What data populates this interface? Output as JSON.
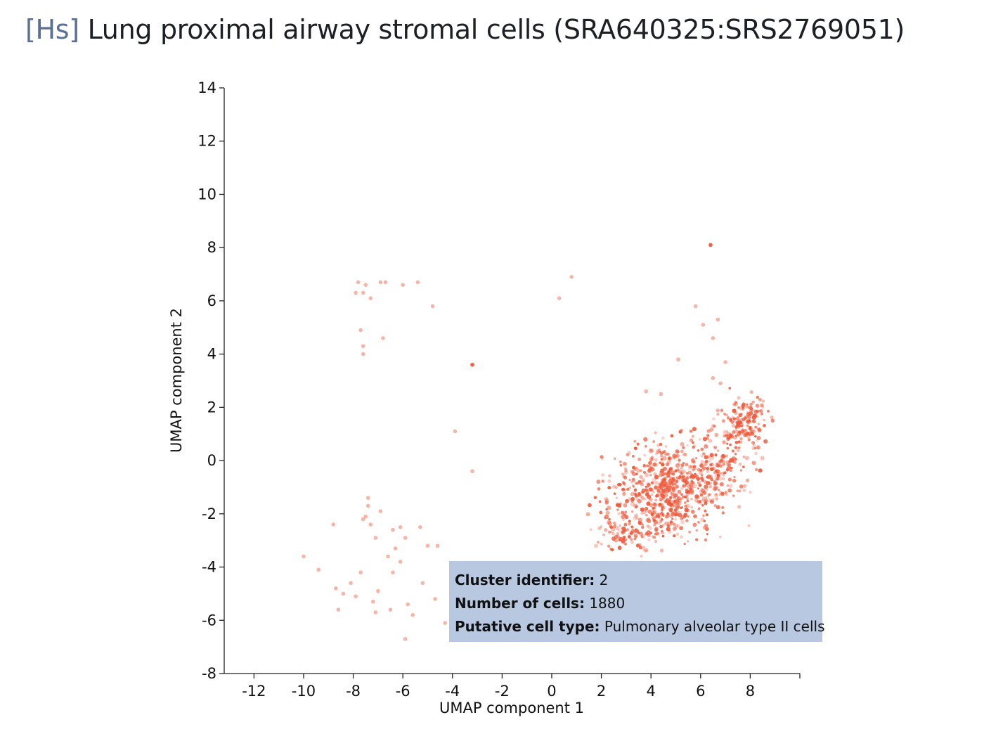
{
  "title": {
    "species": "[Hs]",
    "text": "Lung proximal airway stromal cells (SRA640325:SRS2769051)"
  },
  "tooltip": {
    "cluster_label": "Cluster identifier:",
    "cluster_value": "2",
    "cells_label": "Number of cells:",
    "cells_value": "1880",
    "type_label": "Putative cell type:",
    "type_value": "Pulmonary alveolar type II cells"
  },
  "chart_data": {
    "type": "scatter",
    "xlabel": "UMAP component 1",
    "ylabel": "UMAP component 2",
    "xlim": [
      -13.2,
      10
    ],
    "ylim": [
      -8,
      14
    ],
    "xticks": [
      -12,
      -10,
      -8,
      -6,
      -4,
      -2,
      0,
      2,
      4,
      6,
      8
    ],
    "yticks": [
      -8,
      -6,
      -4,
      -2,
      0,
      2,
      4,
      6,
      8,
      10,
      12,
      14
    ],
    "point_color": "#ee5a3c",
    "series": [
      {
        "values_x": [
          -7.9,
          -7.8,
          -7.6,
          -7.5,
          -7.3,
          -6.9,
          -6.7,
          -6.0,
          -5.4,
          -4.8,
          -7.6,
          -7.6,
          -7.7,
          -6.8,
          -3.2,
          -3.9,
          -3.2,
          0.3,
          0.8,
          6.4,
          5.8,
          6.1,
          6.7,
          6.5,
          7.0,
          5.1,
          6.8,
          6.5,
          3.8,
          4.4,
          -7.4,
          -7.4,
          -7.5,
          -7.3,
          -7.1,
          -6.9,
          -6.4,
          -6.1,
          -5.9,
          -5.3,
          -5.0,
          -4.6,
          -10.0,
          -9.4,
          -8.7,
          -8.4,
          -8.1,
          -7.7,
          -7.2,
          -7.0,
          -6.4,
          -6.1,
          -5.8,
          -5.2,
          -4.7,
          -4.0,
          -6.5,
          -7.1,
          -7.9,
          -8.6,
          -5.9,
          -4.3,
          -6.3,
          -6.6,
          -5.6,
          -8.8,
          -7.6
        ],
        "values_y": [
          6.3,
          6.7,
          6.3,
          6.6,
          6.1,
          6.7,
          6.7,
          6.6,
          6.7,
          5.8,
          4.3,
          4.0,
          4.9,
          4.6,
          3.6,
          1.1,
          -0.4,
          6.1,
          6.9,
          8.1,
          5.8,
          5.1,
          5.3,
          4.6,
          3.7,
          3.8,
          2.9,
          3.1,
          2.6,
          2.5,
          -1.4,
          -1.7,
          -2.1,
          -2.4,
          -2.9,
          -1.9,
          -2.6,
          -2.5,
          -2.9,
          -2.5,
          -3.2,
          -3.2,
          -3.6,
          -4.1,
          -4.8,
          -5.0,
          -4.6,
          -4.2,
          -5.3,
          -4.9,
          -4.2,
          -3.8,
          -5.4,
          -4.6,
          -5.2,
          -6.3,
          -5.6,
          -5.7,
          -5.1,
          -5.6,
          -6.7,
          -6.1,
          -3.3,
          -3.6,
          -5.8,
          -2.4,
          -2.2
        ]
      }
    ]
  }
}
